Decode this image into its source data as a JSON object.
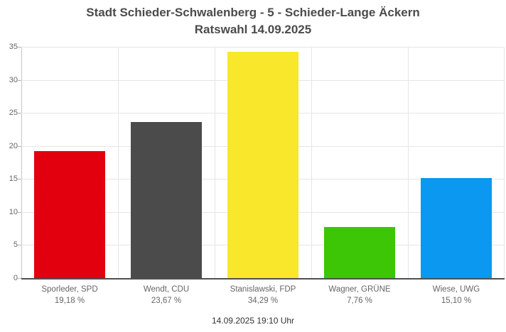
{
  "chart_data": {
    "type": "bar",
    "title": "Stadt Schieder-Schwalenberg - 5 - Schieder-Lange Äckern",
    "subtitle": "Ratswahl 14.09.2025",
    "categories": [
      "Sporleder, SPD",
      "Wendt, CDU",
      "Stanislawski, FDP",
      "Wagner, GRÜNE",
      "Wiese, UWG"
    ],
    "values": [
      19.18,
      23.67,
      34.29,
      7.76,
      15.1
    ],
    "value_labels": [
      "19,18 %",
      "23,67 %",
      "34,29 %",
      "7,76 %",
      "15,10 %"
    ],
    "bar_colors": [
      "#e2000f",
      "#4b4b4b",
      "#f9e72c",
      "#3cc605",
      "#0a98f0"
    ],
    "ylim": [
      0,
      35
    ],
    "yticks": [
      0,
      5,
      10,
      15,
      20,
      25,
      30,
      35
    ],
    "xlabel": "",
    "ylabel": "",
    "grid": true,
    "legend": "none",
    "footer": "14.09.2025 19:10 Uhr"
  },
  "colors": {
    "title_text": "#4b4b4b",
    "axis_text": "#666666",
    "footer_text": "#333333",
    "gridline": "#e6e6e6",
    "axis_line": "#4f4f4f"
  }
}
